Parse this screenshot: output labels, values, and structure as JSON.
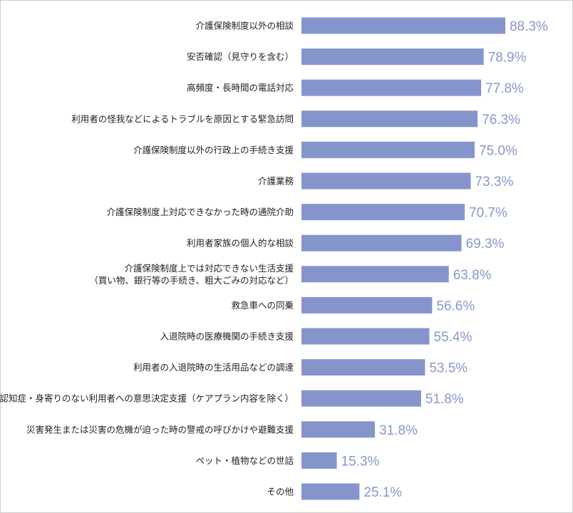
{
  "chart_data": {
    "type": "bar",
    "orientation": "horizontal",
    "bar_color": "#8595cc",
    "value_label_color": "#8797cc",
    "xlim": [
      0,
      100
    ],
    "categories": [
      [
        "介護保険制度以外の相談"
      ],
      [
        "安否確認（見守りを含む）"
      ],
      [
        "高頻度・長時間の電話対応"
      ],
      [
        "利用者の怪我などによるトラブルを原因とする緊急訪問"
      ],
      [
        "介護保険制度以外の行政上の手続き支援"
      ],
      [
        "介護業務"
      ],
      [
        "介護保険制度上対応できなかった時の通院介助"
      ],
      [
        "利用者家族の個人的な相談"
      ],
      [
        "介護保険制度上では対応できない生活支援",
        "（買い物、銀行等の手続き、粗大ごみの対応など）"
      ],
      [
        "救急車への同乗"
      ],
      [
        "入退院時の医療機関の手続き支援"
      ],
      [
        "利用者の入退院時の生活用品などの調達"
      ],
      [
        "認知症・身寄りのない利用者への意思決定支援（ケアプラン内容を除く）"
      ],
      [
        "災害発生または災害の危機が迫った時の警戒の呼びかけや避難支援"
      ],
      [
        "ペット・植物などの世話"
      ],
      [
        "その他"
      ]
    ],
    "values": [
      88.3,
      78.9,
      77.8,
      76.3,
      75.0,
      73.3,
      70.7,
      69.3,
      63.8,
      56.6,
      55.4,
      53.5,
      51.8,
      31.8,
      15.3,
      25.1
    ],
    "value_labels": [
      "88.3%",
      "78.9%",
      "77.8%",
      "76.3%",
      "75.0%",
      "73.3%",
      "70.7%",
      "69.3%",
      "63.8%",
      "56.6%",
      "55.4%",
      "53.5%",
      "51.8%",
      "31.8%",
      "15.3%",
      "25.1%"
    ]
  }
}
